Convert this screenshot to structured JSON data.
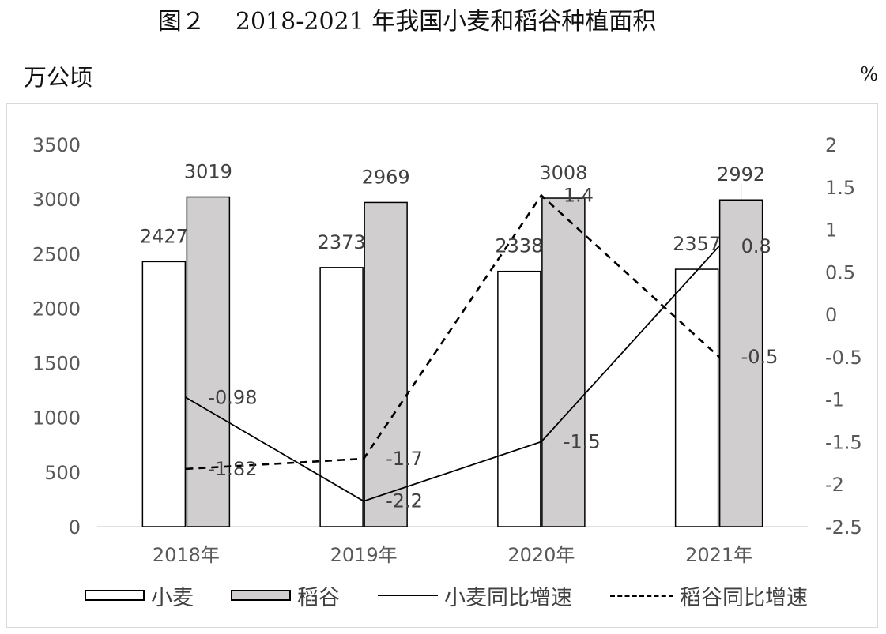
{
  "figure": {
    "title": "图２    2018-2021 年我国小麦和稻谷种植面积",
    "left_unit": "万公顷",
    "right_unit": "%"
  },
  "colors": {
    "wheat_fill": "#ffffff",
    "rice_fill": "#d0cece",
    "bar_stroke": "#000000",
    "axis": "#d9d9d9",
    "label": "#404040"
  },
  "chart_data": {
    "type": "bar",
    "categories": [
      "2018年",
      "2019年",
      "2020年",
      "2021年"
    ],
    "series": [
      {
        "name": "小麦",
        "type": "bar",
        "axis": "left",
        "values": [
          2427,
          2373,
          2338,
          2357
        ],
        "labels": [
          "2427",
          "2373",
          "2338",
          "2357"
        ]
      },
      {
        "name": "稻谷",
        "type": "bar",
        "axis": "left",
        "values": [
          3019,
          2969,
          3008,
          2992
        ],
        "labels": [
          "3019",
          "2969",
          "3008",
          "2992"
        ]
      },
      {
        "name": "小麦同比增速",
        "type": "line",
        "style": "solid",
        "axis": "right",
        "values": [
          -0.98,
          -2.2,
          -1.5,
          0.8
        ],
        "labels": [
          "-0.98",
          "-2.2",
          "-1.5",
          "0.8"
        ]
      },
      {
        "name": "稻谷同比增速",
        "type": "line",
        "style": "dashed",
        "axis": "right",
        "values": [
          -1.82,
          -1.7,
          1.4,
          -0.5
        ],
        "labels": [
          "-1.82",
          "-1.7",
          "1.4",
          "-0.5"
        ]
      }
    ],
    "left_axis": {
      "label": "万公顷",
      "ylim": [
        0,
        3500
      ],
      "ticks": [
        "0",
        "500",
        "1000",
        "1500",
        "2000",
        "2500",
        "3000",
        "3500"
      ]
    },
    "right_axis": {
      "label": "%",
      "ylim": [
        -2.5,
        2
      ],
      "ticks": [
        "2",
        "1.5",
        "1",
        "0.5",
        "0",
        "-0.5",
        "-1",
        "-1.5",
        "-2",
        "-2.5"
      ]
    },
    "grid": false,
    "legend_position": "bottom"
  }
}
